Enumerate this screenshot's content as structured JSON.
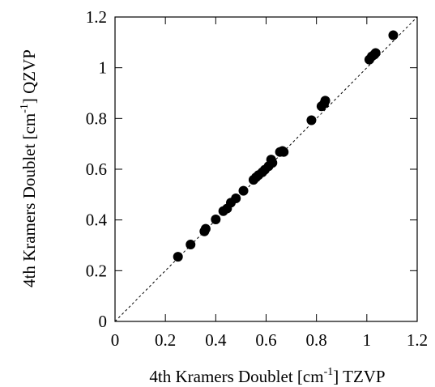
{
  "chart_data": {
    "type": "scatter",
    "xlabel": {
      "main": "4th Kramers Doublet [cm",
      "sup": "-1",
      "end": "] TZVP"
    },
    "ylabel": {
      "main": "4th Kramers Doublet [cm",
      "sup": "-1",
      "end": "] QZVP"
    },
    "xlim": [
      0,
      1.2
    ],
    "ylim": [
      0,
      1.2
    ],
    "xticks": [
      "0",
      "0.2",
      "0.4",
      "0.6",
      "0.8",
      "1",
      "1.2"
    ],
    "yticks": [
      "0",
      "0.2",
      "0.4",
      "0.6",
      "0.8",
      "1",
      "1.2"
    ],
    "reference_line": "y = x (dashed)",
    "grid": false,
    "marker_color": "#000000",
    "points": [
      {
        "x": 0.25,
        "y": 0.255
      },
      {
        "x": 0.3,
        "y": 0.303
      },
      {
        "x": 0.355,
        "y": 0.355
      },
      {
        "x": 0.36,
        "y": 0.365
      },
      {
        "x": 0.4,
        "y": 0.402
      },
      {
        "x": 0.43,
        "y": 0.435
      },
      {
        "x": 0.445,
        "y": 0.445
      },
      {
        "x": 0.46,
        "y": 0.468
      },
      {
        "x": 0.48,
        "y": 0.485
      },
      {
        "x": 0.51,
        "y": 0.515
      },
      {
        "x": 0.55,
        "y": 0.558
      },
      {
        "x": 0.56,
        "y": 0.568
      },
      {
        "x": 0.57,
        "y": 0.577
      },
      {
        "x": 0.585,
        "y": 0.588
      },
      {
        "x": 0.595,
        "y": 0.598
      },
      {
        "x": 0.61,
        "y": 0.612
      },
      {
        "x": 0.62,
        "y": 0.638
      },
      {
        "x": 0.625,
        "y": 0.625
      },
      {
        "x": 0.655,
        "y": 0.668
      },
      {
        "x": 0.665,
        "y": 0.672
      },
      {
        "x": 0.67,
        "y": 0.668
      },
      {
        "x": 0.78,
        "y": 0.793
      },
      {
        "x": 0.82,
        "y": 0.848
      },
      {
        "x": 0.835,
        "y": 0.87
      },
      {
        "x": 0.83,
        "y": 0.858
      },
      {
        "x": 1.01,
        "y": 1.032
      },
      {
        "x": 1.02,
        "y": 1.045
      },
      {
        "x": 1.03,
        "y": 1.052
      },
      {
        "x": 1.035,
        "y": 1.058
      },
      {
        "x": 1.105,
        "y": 1.128
      }
    ]
  }
}
